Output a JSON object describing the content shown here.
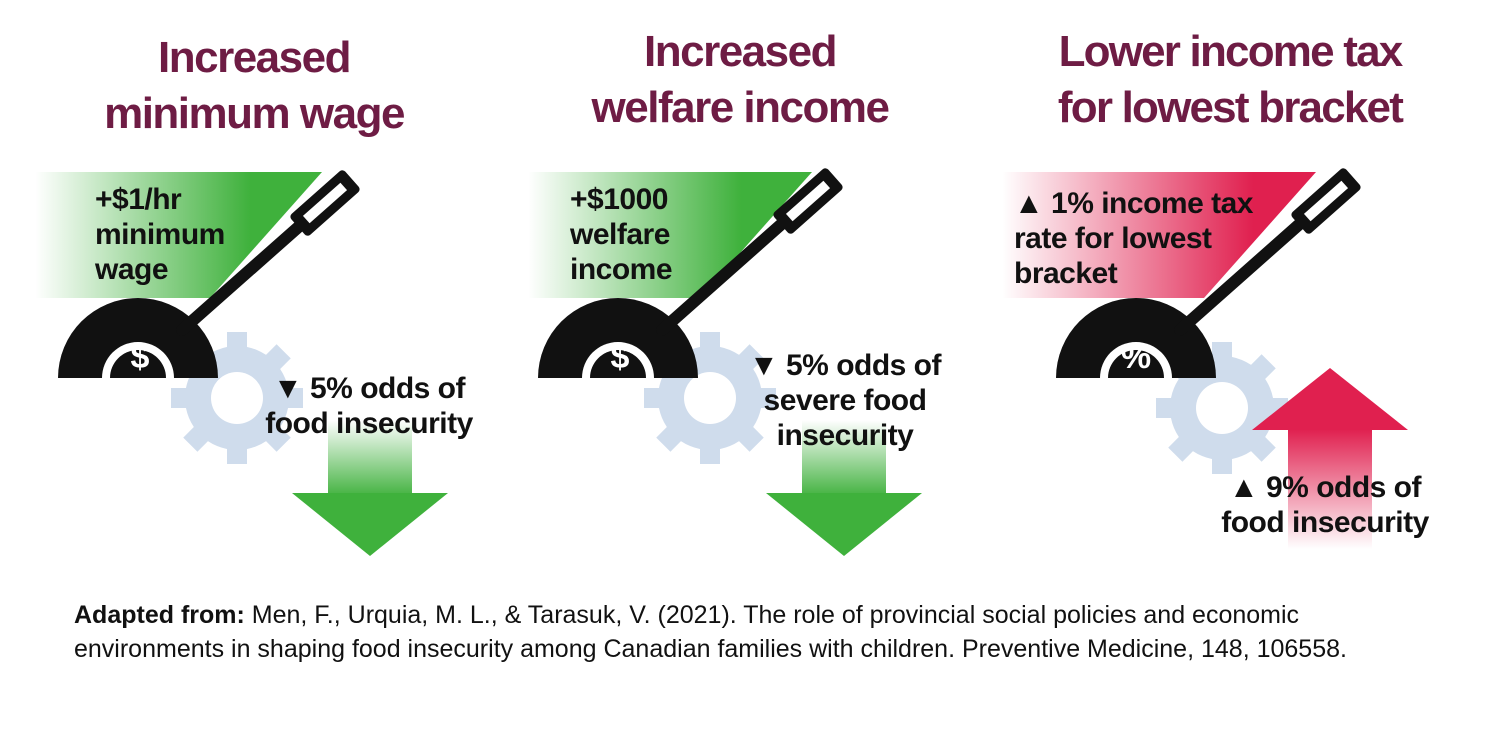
{
  "panels": [
    {
      "title_line1": "Increased",
      "title_line2": "minimum wage",
      "lever_lines": [
        "+$1/hr",
        "minimum",
        "wage"
      ],
      "gauge_symbol": "$",
      "effect_lines": [
        "▼ 5% odds of",
        "food insecurity"
      ],
      "direction": "down",
      "accent_color": "#3fb13c"
    },
    {
      "title_line1": "Increased",
      "title_line2": "welfare income",
      "lever_lines": [
        "+$1000",
        "welfare",
        "income"
      ],
      "gauge_symbol": "$",
      "effect_lines": [
        "▼ 5% odds of",
        "severe food",
        "insecurity"
      ],
      "direction": "down",
      "accent_color": "#3fb13c"
    },
    {
      "title_line1": "Lower income tax",
      "title_line2": "for  lowest bracket",
      "lever_lines": [
        "▲ 1% income tax",
        "rate for lowest",
        "bracket"
      ],
      "gauge_symbol": "%",
      "effect_lines": [
        "▲ 9% odds of",
        "food insecurity"
      ],
      "direction": "up",
      "accent_color": "#e0204f"
    }
  ],
  "citation": {
    "label": "Adapted from:",
    "text": " Men, F., Urquia, M. L., & Tarasuk, V. (2021). The role of provincial social policies and economic environments in shaping food insecurity among Canadian families with children. Preventive Medicine, 148, 106558."
  },
  "colors": {
    "title": "#6e1c44",
    "gear": "#cfdcec",
    "gauge": "#111111",
    "green": "#3fb13c",
    "red": "#e0204f"
  }
}
